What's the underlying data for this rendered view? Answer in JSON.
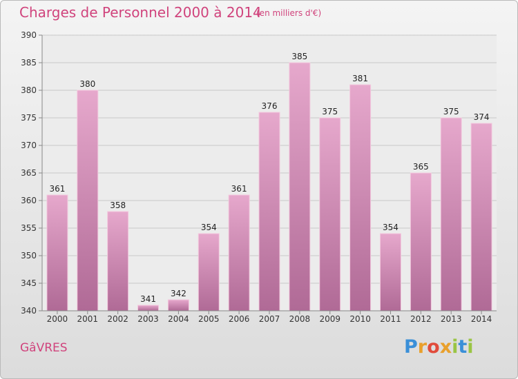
{
  "header": {
    "title": "Charges de Personnel 2000 à 2014",
    "subtitle": "(en milliers d'€)"
  },
  "footer": {
    "town": "GâVRES",
    "logo_letters": [
      "P",
      "r",
      "o",
      "x",
      "i",
      "t",
      "i"
    ]
  },
  "colors": {
    "accent": "#d0437c",
    "bar_top": "#e6a8cc",
    "bar_bottom": "#b06a96"
  },
  "chart_data": {
    "type": "bar",
    "title": "Charges de Personnel 2000 à 2014",
    "subtitle": "(en milliers d'€)",
    "categories": [
      "2000",
      "2001",
      "2002",
      "2003",
      "2004",
      "2005",
      "2006",
      "2007",
      "2008",
      "2009",
      "2010",
      "2011",
      "2012",
      "2013",
      "2014"
    ],
    "values": [
      361,
      380,
      358,
      341,
      342,
      354,
      361,
      376,
      385,
      375,
      381,
      354,
      365,
      375,
      374
    ],
    "ylim": [
      340,
      390
    ],
    "yticks": [
      340,
      345,
      350,
      355,
      360,
      365,
      370,
      375,
      380,
      385,
      390
    ],
    "grid": true,
    "data_labels": true
  }
}
